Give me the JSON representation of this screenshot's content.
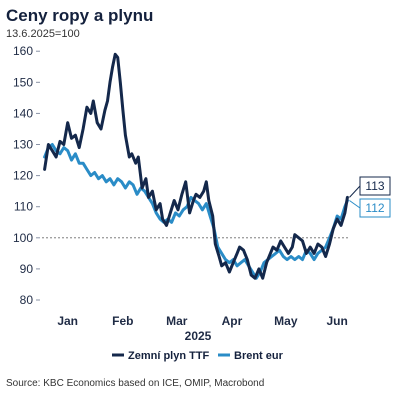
{
  "chart_data": {
    "type": "line",
    "title": "Ceny ropy a plynu",
    "subtitle": "13.6.2025=100",
    "source": "Source: KBC Economics based on ICE, OMIP, Macrobond",
    "x_unit": "weeks from start of 2025 (approx.)",
    "xlim": [
      0,
      24
    ],
    "ylim": [
      80,
      162
    ],
    "yticks": [
      80,
      90,
      100,
      110,
      120,
      130,
      140,
      150,
      160
    ],
    "month_labels": [
      {
        "label": "Jan",
        "x": 2.0
      },
      {
        "label": "Feb",
        "x": 6.3
      },
      {
        "label": "Mar",
        "x": 10.5
      },
      {
        "label": "Apr",
        "x": 14.8
      },
      {
        "label": "May",
        "x": 19.0
      },
      {
        "label": "Jun",
        "x": 23.0
      }
    ],
    "year_label": "2025",
    "reference_line": 100,
    "legend_position": "bottom",
    "grid": false,
    "series": [
      {
        "name": "Zemní plyn TTF",
        "color": "#14284b",
        "end_label": "113",
        "points": [
          [
            0.2,
            122
          ],
          [
            0.5,
            130
          ],
          [
            0.8,
            128
          ],
          [
            1.1,
            126
          ],
          [
            1.4,
            131
          ],
          [
            1.7,
            130
          ],
          [
            2.0,
            137
          ],
          [
            2.3,
            132
          ],
          [
            2.6,
            133
          ],
          [
            2.9,
            129
          ],
          [
            3.2,
            135
          ],
          [
            3.5,
            142
          ],
          [
            3.8,
            140
          ],
          [
            4.0,
            144
          ],
          [
            4.3,
            137
          ],
          [
            4.6,
            135
          ],
          [
            4.9,
            141
          ],
          [
            5.1,
            144
          ],
          [
            5.3,
            150
          ],
          [
            5.5,
            155
          ],
          [
            5.7,
            159
          ],
          [
            5.9,
            158
          ],
          [
            6.1,
            150
          ],
          [
            6.3,
            141
          ],
          [
            6.5,
            133
          ],
          [
            6.8,
            126
          ],
          [
            7.0,
            127
          ],
          [
            7.3,
            124
          ],
          [
            7.5,
            126
          ],
          [
            7.8,
            116
          ],
          [
            8.1,
            119
          ],
          [
            8.3,
            113
          ],
          [
            8.6,
            115
          ],
          [
            8.9,
            109
          ],
          [
            9.2,
            111
          ],
          [
            9.4,
            106
          ],
          [
            9.7,
            104
          ],
          [
            10.0,
            108
          ],
          [
            10.3,
            112
          ],
          [
            10.6,
            109
          ],
          [
            10.9,
            114
          ],
          [
            11.2,
            118
          ],
          [
            11.5,
            108
          ],
          [
            11.8,
            112
          ],
          [
            12.0,
            114
          ],
          [
            12.3,
            113
          ],
          [
            12.6,
            115
          ],
          [
            12.8,
            118
          ],
          [
            13.0,
            112
          ],
          [
            13.3,
            107
          ],
          [
            13.5,
            98
          ],
          [
            13.8,
            94
          ],
          [
            14.0,
            91
          ],
          [
            14.3,
            92
          ],
          [
            14.6,
            89
          ],
          [
            14.9,
            92
          ],
          [
            15.2,
            95
          ],
          [
            15.4,
            97
          ],
          [
            15.7,
            96
          ],
          [
            16.0,
            93
          ],
          [
            16.3,
            88
          ],
          [
            16.6,
            87
          ],
          [
            16.9,
            90
          ],
          [
            17.2,
            87
          ],
          [
            17.5,
            92
          ],
          [
            17.8,
            95
          ],
          [
            18.0,
            97
          ],
          [
            18.3,
            96
          ],
          [
            18.6,
            99
          ],
          [
            18.9,
            97
          ],
          [
            19.2,
            95
          ],
          [
            19.5,
            97
          ],
          [
            19.7,
            101
          ],
          [
            20.0,
            100
          ],
          [
            20.3,
            99
          ],
          [
            20.6,
            95
          ],
          [
            20.9,
            97
          ],
          [
            21.2,
            95
          ],
          [
            21.5,
            98
          ],
          [
            21.8,
            97
          ],
          [
            22.1,
            94
          ],
          [
            22.4,
            98
          ],
          [
            22.7,
            103
          ],
          [
            23.0,
            106
          ],
          [
            23.3,
            104
          ],
          [
            23.6,
            108
          ],
          [
            23.8,
            113
          ]
        ]
      },
      {
        "name": "Brent eur",
        "color": "#2a8cc7",
        "end_label": "112",
        "points": [
          [
            0.2,
            126
          ],
          [
            0.5,
            129
          ],
          [
            0.8,
            130
          ],
          [
            1.1,
            128
          ],
          [
            1.4,
            127
          ],
          [
            1.7,
            129
          ],
          [
            2.0,
            128
          ],
          [
            2.3,
            125
          ],
          [
            2.6,
            127
          ],
          [
            2.9,
            124
          ],
          [
            3.2,
            124
          ],
          [
            3.5,
            122
          ],
          [
            3.8,
            120
          ],
          [
            4.1,
            121
          ],
          [
            4.4,
            119
          ],
          [
            4.7,
            120
          ],
          [
            5.0,
            118
          ],
          [
            5.3,
            119
          ],
          [
            5.6,
            117
          ],
          [
            5.9,
            119
          ],
          [
            6.2,
            118
          ],
          [
            6.5,
            116
          ],
          [
            6.8,
            118
          ],
          [
            7.1,
            117
          ],
          [
            7.4,
            114
          ],
          [
            7.7,
            116
          ],
          [
            8.0,
            115
          ],
          [
            8.3,
            113
          ],
          [
            8.6,
            111
          ],
          [
            8.9,
            108
          ],
          [
            9.2,
            106
          ],
          [
            9.5,
            105
          ],
          [
            9.8,
            106
          ],
          [
            10.1,
            105
          ],
          [
            10.4,
            108
          ],
          [
            10.7,
            107
          ],
          [
            11.0,
            109
          ],
          [
            11.3,
            110
          ],
          [
            11.6,
            113
          ],
          [
            11.9,
            112
          ],
          [
            12.2,
            111
          ],
          [
            12.5,
            109
          ],
          [
            12.8,
            111
          ],
          [
            13.1,
            107
          ],
          [
            13.4,
            103
          ],
          [
            13.7,
            97
          ],
          [
            14.0,
            95
          ],
          [
            14.3,
            93
          ],
          [
            14.6,
            92
          ],
          [
            14.9,
            93
          ],
          [
            15.2,
            91
          ],
          [
            15.5,
            92
          ],
          [
            15.8,
            93
          ],
          [
            16.1,
            91
          ],
          [
            16.4,
            89
          ],
          [
            16.7,
            87
          ],
          [
            17.0,
            89
          ],
          [
            17.3,
            92
          ],
          [
            17.6,
            93
          ],
          [
            17.9,
            94
          ],
          [
            18.2,
            95
          ],
          [
            18.5,
            96
          ],
          [
            18.8,
            94
          ],
          [
            19.1,
            93
          ],
          [
            19.4,
            94
          ],
          [
            19.7,
            93
          ],
          [
            20.0,
            94
          ],
          [
            20.3,
            93
          ],
          [
            20.6,
            96
          ],
          [
            20.9,
            95
          ],
          [
            21.2,
            93
          ],
          [
            21.5,
            95
          ],
          [
            21.8,
            96
          ],
          [
            22.1,
            97
          ],
          [
            22.4,
            100
          ],
          [
            22.7,
            103
          ],
          [
            23.0,
            107
          ],
          [
            23.3,
            106
          ],
          [
            23.6,
            110
          ],
          [
            23.8,
            112
          ]
        ]
      }
    ]
  }
}
